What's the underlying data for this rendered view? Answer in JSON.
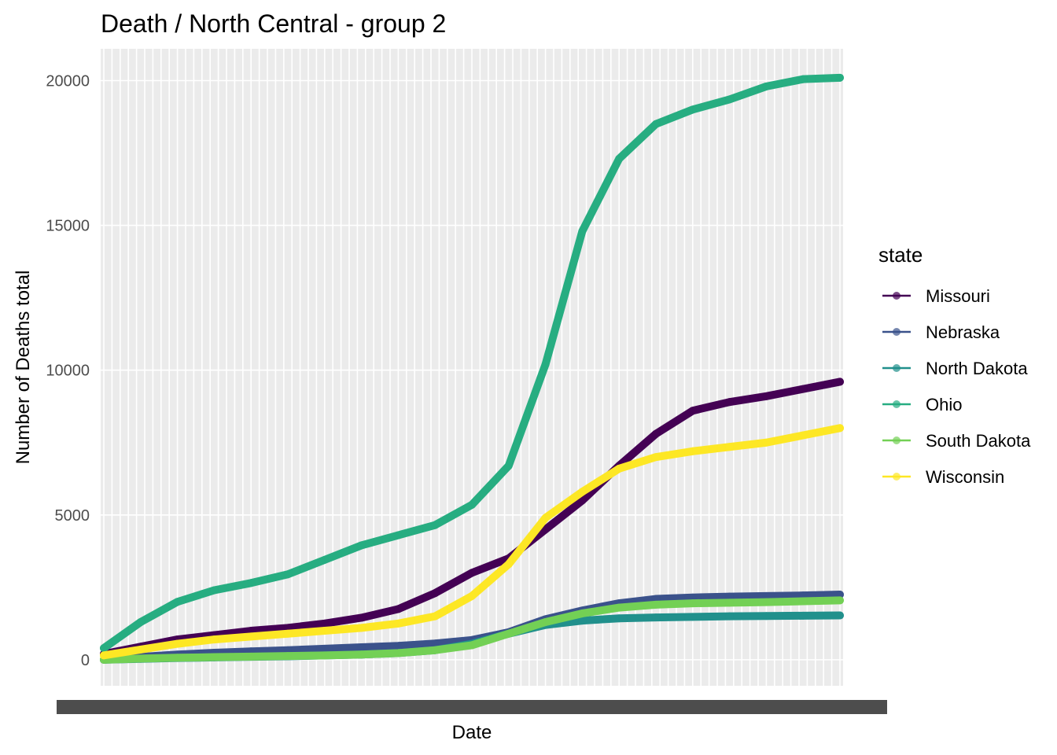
{
  "chart_data": {
    "type": "line",
    "title": "Death / North Central - group 2",
    "xlabel": "Date",
    "ylabel": "Number of Deaths total",
    "x": [
      0,
      5,
      10,
      15,
      20,
      25,
      30,
      35,
      40,
      45,
      50,
      55,
      60,
      65,
      70,
      75,
      80,
      85,
      90,
      95,
      100
    ],
    "x_tick_labels_note": "",
    "ylim": [
      -900,
      21100
    ],
    "y_ticks": [
      0,
      5000,
      10000,
      15000,
      20000
    ],
    "y_tick_labels": [
      "0",
      "5000",
      "10000",
      "15000",
      "20000"
    ],
    "grid": true,
    "panel_background": "#ebebeb",
    "legend_position": "right",
    "legend_title": "state",
    "series": [
      {
        "name": "Missouri",
        "color": "#440154",
        "values": [
          200,
          450,
          700,
          850,
          1000,
          1100,
          1250,
          1450,
          1750,
          2300,
          3000,
          3500,
          4500,
          5500,
          6700,
          7800,
          8600,
          8900,
          9100,
          9350,
          9600
        ]
      },
      {
        "name": "Nebraska",
        "color": "#3b528b",
        "values": [
          0,
          100,
          180,
          240,
          290,
          330,
          380,
          430,
          480,
          560,
          680,
          950,
          1400,
          1700,
          1950,
          2100,
          2150,
          2180,
          2200,
          2220,
          2250
        ]
      },
      {
        "name": "North Dakota",
        "color": "#21908c",
        "values": [
          0,
          30,
          60,
          80,
          100,
          120,
          150,
          180,
          230,
          330,
          550,
          900,
          1200,
          1350,
          1430,
          1460,
          1480,
          1500,
          1510,
          1520,
          1530
        ]
      },
      {
        "name": "Ohio",
        "color": "#27ad81",
        "values": [
          400,
          1300,
          2000,
          2400,
          2650,
          2950,
          3450,
          3950,
          4300,
          4650,
          5350,
          6700,
          10200,
          14800,
          17300,
          18500,
          19000,
          19350,
          19800,
          20050,
          20100
        ]
      },
      {
        "name": "South Dakota",
        "color": "#73d055",
        "values": [
          0,
          40,
          70,
          90,
          110,
          130,
          150,
          180,
          230,
          330,
          500,
          900,
          1300,
          1600,
          1800,
          1900,
          1950,
          1970,
          1990,
          2020,
          2050
        ]
      },
      {
        "name": "Wisconsin",
        "color": "#fde725",
        "values": [
          150,
          350,
          550,
          700,
          800,
          900,
          1000,
          1100,
          1250,
          1500,
          2200,
          3300,
          4900,
          5800,
          6600,
          7000,
          7200,
          7350,
          7500,
          7750,
          8000
        ]
      }
    ]
  }
}
